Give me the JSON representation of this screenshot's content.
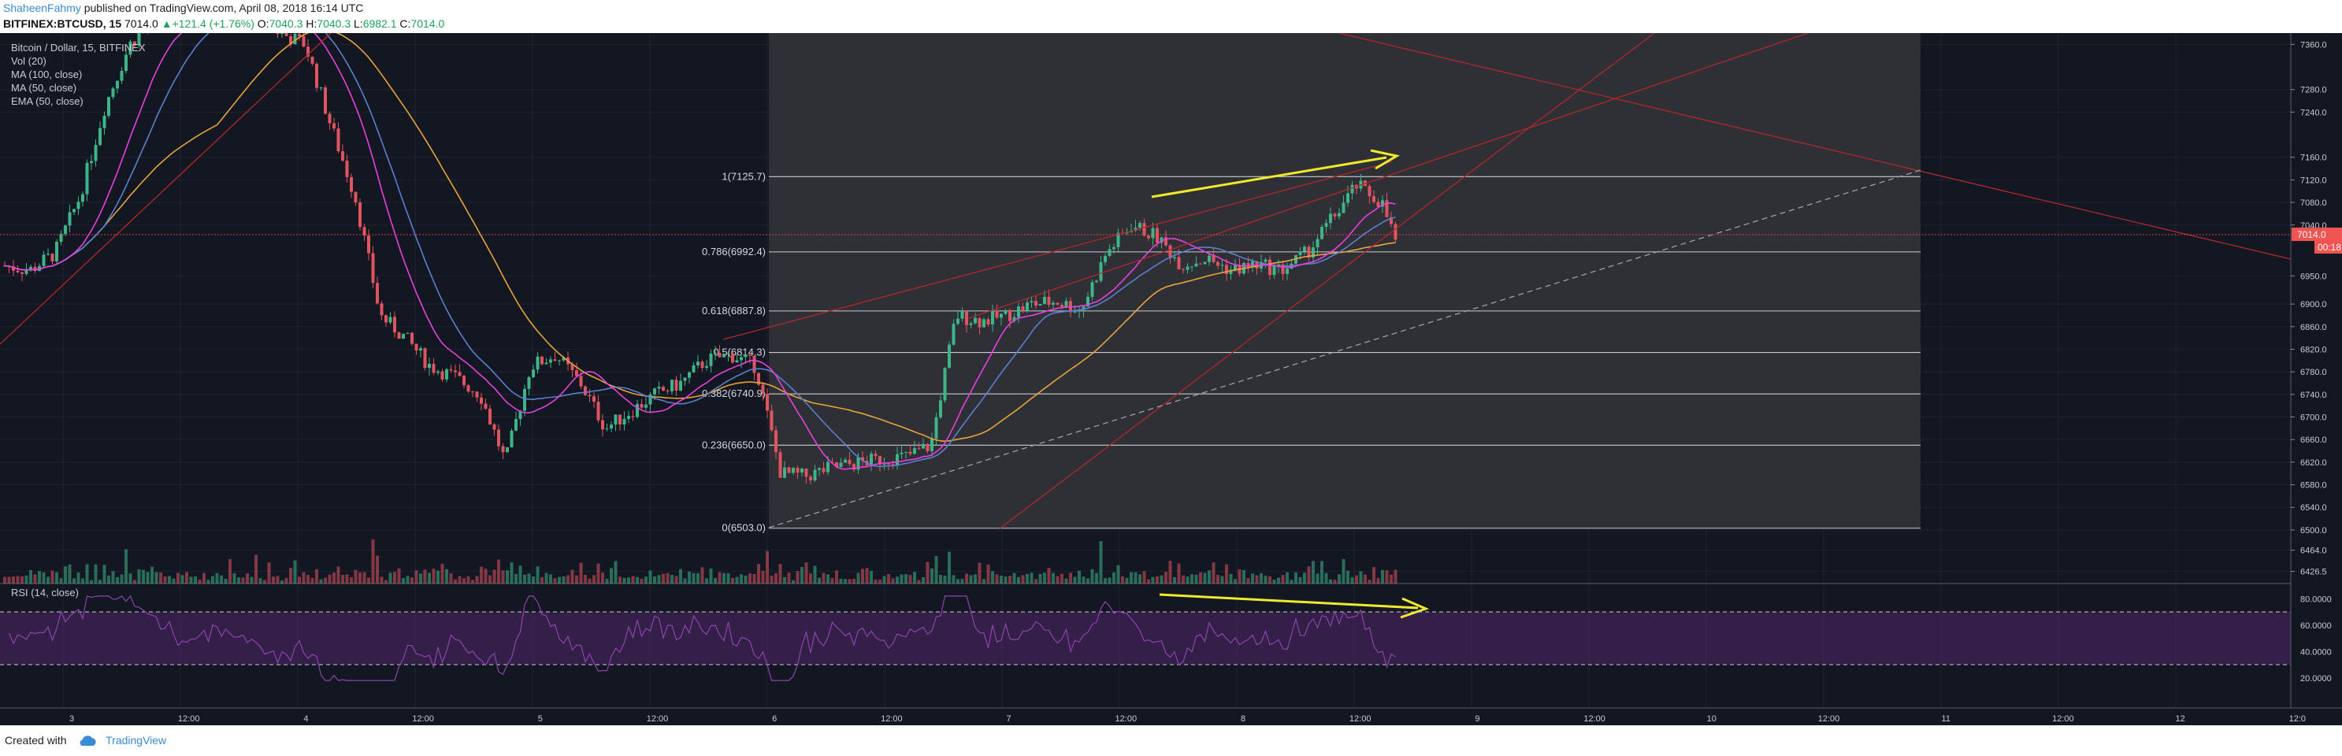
{
  "header": {
    "author": "ShaheenFahmy",
    "published_text": "published on TradingView.com, April 08, 2018 16:14 UTC",
    "symbol": "BITFINEX:BTCUSD, 15",
    "last": "7014.0",
    "change": "+121.4 (+1.76%)",
    "open_label": "O:",
    "open": "7040.3",
    "high_label": "H:",
    "high": "7040.3",
    "low_label": "L:",
    "low": "6982.1",
    "close_label": "C:",
    "close": "7014.0"
  },
  "legend": {
    "title": "Bitcoin / Dollar, 15, BITFINEX",
    "items": [
      "Vol (20)",
      "MA (100, close)",
      "MA (50, close)",
      "EMA (50, close)"
    ],
    "rsi": "RSI (14, close)"
  },
  "footer": {
    "created_with": "Created with",
    "brand": "TradingView"
  },
  "colors": {
    "background": "#131722",
    "fib_zone": "#2f3138",
    "up": "#3eb489",
    "down": "#e05460",
    "ma100": "#e8a33a",
    "ma50": "#e83fe0",
    "ema50": "#5b7fd0",
    "trendline": "#b2272c",
    "arrow": "#f0ea2a",
    "rsi": "#8e44ad",
    "last_price": "#f05350"
  },
  "chart_data": {
    "type": "candlestick",
    "symbol": "BTCUSD",
    "interval": "15",
    "price_axis_ticks": [
      7360.0,
      7280.0,
      7240.0,
      7160.0,
      7120.0,
      7080.0,
      7040.0,
      6950.0,
      6900.0,
      6860.0,
      6820.0,
      6780.0,
      6740.0,
      6700.0,
      6660.0,
      6620.0,
      6580.0,
      6540.0,
      6500.0,
      6464.0,
      6426.5
    ],
    "price_axis_labels": [
      "7360.0",
      "7280.0",
      "7240.0",
      "7160.0",
      "7120.0",
      "7080.0",
      "7040.0",
      "6950.0",
      "6900.0",
      "6860.0",
      "6820.0",
      "6780.0",
      "6740.0",
      "6700.0",
      "6660.0",
      "6620.0",
      "6580.0",
      "6540.0",
      "6500.0",
      "6464.0",
      "6426.5"
    ],
    "price_range": [
      6405,
      7380
    ],
    "time_axis_labels": [
      "3",
      "12:00",
      "4",
      "12:00",
      "5",
      "12:00",
      "6",
      "12:00",
      "7",
      "12:00",
      "8",
      "12:00",
      "9",
      "12:00",
      "10",
      "12:00",
      "11",
      "12:00",
      "12",
      "12:0"
    ],
    "last_price": {
      "price": 7014.0,
      "label": "7014.0",
      "countdown": "00:18"
    },
    "fibonacci": [
      {
        "level": "1",
        "price": 7125.7,
        "label": "1(7125.7)"
      },
      {
        "level": "0.786",
        "price": 6992.4,
        "label": "0.786(6992.4)"
      },
      {
        "level": "0.618",
        "price": 6887.8,
        "label": "0.618(6887.8)"
      },
      {
        "level": "0.5",
        "price": 6814.3,
        "label": "0.5(6814.3)"
      },
      {
        "level": "0.382",
        "price": 6740.9,
        "label": "0.382(6740.9)"
      },
      {
        "level": "0.236",
        "price": 6650.0,
        "label": "0.236(6650.0)"
      },
      {
        "level": "0",
        "price": 6503.0,
        "label": "0(6503.0)"
      }
    ],
    "price_path": [
      [
        0,
        6968
      ],
      [
        0.018,
        6960
      ],
      [
        0.036,
        6990
      ],
      [
        0.054,
        7090
      ],
      [
        0.072,
        7250
      ],
      [
        0.09,
        7360
      ],
      [
        0.108,
        7410
      ],
      [
        0.126,
        7400
      ],
      [
        0.144,
        7420
      ],
      [
        0.162,
        7440
      ],
      [
        0.18,
        7420
      ],
      [
        0.198,
        7380
      ],
      [
        0.216,
        7360
      ],
      [
        0.234,
        7220
      ],
      [
        0.252,
        7090
      ],
      [
        0.27,
        6880
      ],
      [
        0.288,
        6840
      ],
      [
        0.306,
        6790
      ],
      [
        0.324,
        6770
      ],
      [
        0.342,
        6740
      ],
      [
        0.36,
        6620
      ],
      [
        0.378,
        6790
      ],
      [
        0.396,
        6810
      ],
      [
        0.414,
        6760
      ],
      [
        0.432,
        6680
      ],
      [
        0.45,
        6710
      ],
      [
        0.468,
        6740
      ],
      [
        0.486,
        6760
      ],
      [
        0.504,
        6800
      ],
      [
        0.522,
        6810
      ],
      [
        0.54,
        6790
      ],
      [
        0.558,
        6600
      ],
      [
        0.576,
        6595
      ],
      [
        0.594,
        6610
      ],
      [
        0.612,
        6618
      ],
      [
        0.63,
        6625
      ],
      [
        0.648,
        6630
      ],
      [
        0.666,
        6650
      ],
      [
        0.684,
        6880
      ],
      [
        0.702,
        6870
      ],
      [
        0.72,
        6880
      ],
      [
        0.738,
        6900
      ],
      [
        0.756,
        6905
      ],
      [
        0.774,
        6890
      ],
      [
        0.792,
        6990
      ],
      [
        0.81,
        7040
      ],
      [
        0.828,
        7020
      ],
      [
        0.846,
        6970
      ],
      [
        0.864,
        6980
      ],
      [
        0.882,
        6960
      ],
      [
        0.9,
        6970
      ],
      [
        0.918,
        6960
      ],
      [
        0.936,
        6990
      ],
      [
        0.954,
        7050
      ],
      [
        0.972,
        7110
      ],
      [
        0.99,
        7080
      ],
      [
        1,
        7014
      ]
    ],
    "rsi": {
      "upper_band": 70,
      "lower_band": 30,
      "axis_labels": [
        "80.0000",
        "60.0000",
        "40.0000",
        "20.0000"
      ],
      "axis_values": [
        80,
        60,
        40,
        20
      ]
    }
  }
}
